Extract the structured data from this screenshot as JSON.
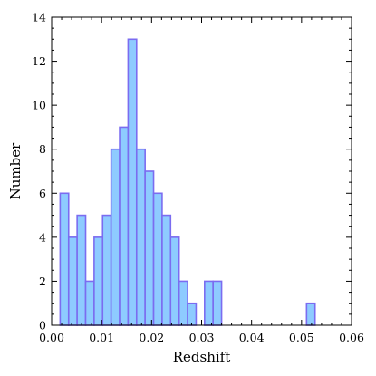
{
  "chart_data": {
    "type": "bar",
    "xlabel": "Redshift",
    "ylabel": "Number",
    "xlim": [
      0.0,
      0.06
    ],
    "ylim": [
      0,
      14
    ],
    "x_ticks": [
      "0.00",
      "0.01",
      "0.02",
      "0.03",
      "0.04",
      "0.05",
      "0.06"
    ],
    "y_ticks": [
      "0",
      "2",
      "4",
      "6",
      "8",
      "10",
      "12",
      "14"
    ],
    "grid": false,
    "bin_width": 0.0017,
    "bins": [
      {
        "x0": 0.0017,
        "x1": 0.0034,
        "value": 6
      },
      {
        "x0": 0.0034,
        "x1": 0.0051,
        "value": 4
      },
      {
        "x0": 0.0051,
        "x1": 0.0068,
        "value": 5
      },
      {
        "x0": 0.0068,
        "x1": 0.0085,
        "value": 2
      },
      {
        "x0": 0.0085,
        "x1": 0.0102,
        "value": 4
      },
      {
        "x0": 0.0102,
        "x1": 0.0119,
        "value": 5
      },
      {
        "x0": 0.0119,
        "x1": 0.0136,
        "value": 8
      },
      {
        "x0": 0.0136,
        "x1": 0.0153,
        "value": 9
      },
      {
        "x0": 0.0153,
        "x1": 0.017,
        "value": 13
      },
      {
        "x0": 0.017,
        "x1": 0.0187,
        "value": 8
      },
      {
        "x0": 0.0187,
        "x1": 0.0204,
        "value": 7
      },
      {
        "x0": 0.0204,
        "x1": 0.0221,
        "value": 6
      },
      {
        "x0": 0.0221,
        "x1": 0.0238,
        "value": 5
      },
      {
        "x0": 0.0238,
        "x1": 0.0255,
        "value": 4
      },
      {
        "x0": 0.0255,
        "x1": 0.0272,
        "value": 2
      },
      {
        "x0": 0.0272,
        "x1": 0.0289,
        "value": 1
      },
      {
        "x0": 0.0289,
        "x1": 0.0306,
        "value": 0
      },
      {
        "x0": 0.0306,
        "x1": 0.0323,
        "value": 2
      },
      {
        "x0": 0.0323,
        "x1": 0.034,
        "value": 2
      },
      {
        "x0": 0.034,
        "x1": 0.0357,
        "value": 0
      },
      {
        "x0": 0.0357,
        "x1": 0.0374,
        "value": 0
      },
      {
        "x0": 0.0374,
        "x1": 0.0391,
        "value": 0
      },
      {
        "x0": 0.0391,
        "x1": 0.0408,
        "value": 0
      },
      {
        "x0": 0.0408,
        "x1": 0.0425,
        "value": 0
      },
      {
        "x0": 0.0425,
        "x1": 0.0442,
        "value": 0
      },
      {
        "x0": 0.0442,
        "x1": 0.0459,
        "value": 0
      },
      {
        "x0": 0.0459,
        "x1": 0.0476,
        "value": 0
      },
      {
        "x0": 0.0476,
        "x1": 0.0493,
        "value": 0
      },
      {
        "x0": 0.0493,
        "x1": 0.051,
        "value": 0
      },
      {
        "x0": 0.051,
        "x1": 0.0527,
        "value": 1
      }
    ],
    "colors": {
      "bar_fill": "#8ecbff",
      "bar_edge": "#7b6cf0",
      "axis": "#000000",
      "background": "#ffffff"
    }
  }
}
